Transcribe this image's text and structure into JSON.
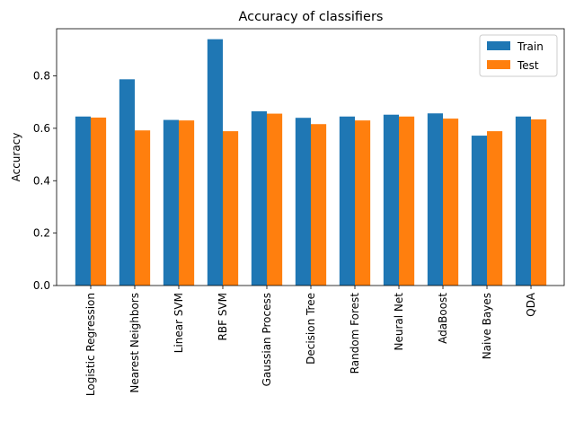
{
  "chart_data": {
    "type": "bar",
    "title": "Accuracy of classifiers",
    "xlabel": "",
    "ylabel": "Accuracy",
    "ylim": [
      0,
      0.98
    ],
    "yticks": [
      "0.0",
      "0.2",
      "0.4",
      "0.6",
      "0.8"
    ],
    "categories": [
      "Logistic Regression",
      "Nearest Neighbors",
      "Linear SVM",
      "RBF SVM",
      "Gaussian Process",
      "Decision Tree",
      "Random Forest",
      "Neural Net",
      "AdaBoost",
      "Naive Bayes",
      "QDA"
    ],
    "series": [
      {
        "name": "Train",
        "color": "#1f77b4",
        "values": [
          0.645,
          0.787,
          0.632,
          0.94,
          0.665,
          0.64,
          0.645,
          0.652,
          0.657,
          0.572,
          0.645
        ]
      },
      {
        "name": "Test",
        "color": "#ff7f0e",
        "values": [
          0.641,
          0.592,
          0.63,
          0.589,
          0.656,
          0.616,
          0.63,
          0.645,
          0.637,
          0.589,
          0.634
        ]
      }
    ],
    "grid": false,
    "legend_position": "top-right"
  }
}
